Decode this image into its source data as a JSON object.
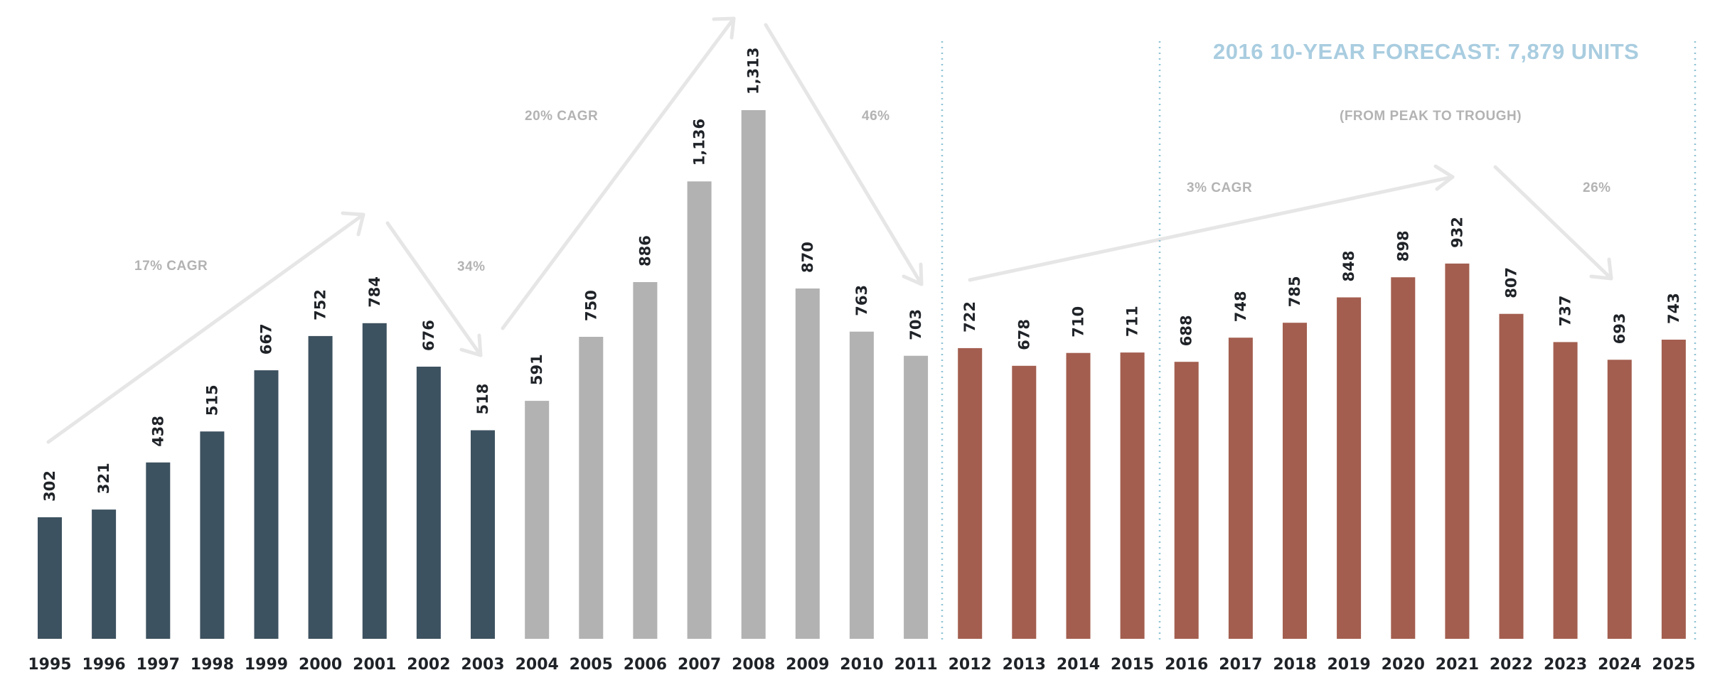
{
  "chart_data": {
    "type": "bar",
    "title": "2016 10-YEAR FORECAST: 7,879  UNITS",
    "xlabel": "",
    "ylabel": "",
    "ylim": [
      0,
      1313
    ],
    "grid": false,
    "categories": [
      "1995",
      "1996",
      "1997",
      "1998",
      "1999",
      "2000",
      "2001",
      "2002",
      "2003",
      "2004",
      "2005",
      "2006",
      "2007",
      "2008",
      "2009",
      "2010",
      "2011",
      "2012",
      "2013",
      "2014",
      "2015",
      "2016",
      "2017",
      "2018",
      "2019",
      "2020",
      "2021",
      "2022",
      "2023",
      "2024",
      "2025"
    ],
    "values": [
      302,
      321,
      438,
      515,
      667,
      752,
      784,
      676,
      518,
      591,
      750,
      886,
      1136,
      1313,
      870,
      763,
      703,
      722,
      678,
      710,
      711,
      688,
      748,
      785,
      848,
      898,
      932,
      807,
      737,
      693,
      743
    ],
    "value_labels": [
      "302",
      "321",
      "438",
      "515",
      "667",
      "752",
      "784",
      "676",
      "518",
      "591",
      "750",
      "886",
      "1,136",
      "1,313",
      "870",
      "763",
      "703",
      "722",
      "678",
      "710",
      "711",
      "688",
      "748",
      "785",
      "848",
      "898",
      "932",
      "807",
      "737",
      "693",
      "743"
    ],
    "bar_colors": [
      "#3d5260",
      "#3d5260",
      "#3d5260",
      "#3d5260",
      "#3d5260",
      "#3d5260",
      "#3d5260",
      "#3d5260",
      "#3d5260",
      "#b2b2b2",
      "#b2b2b2",
      "#b2b2b2",
      "#b2b2b2",
      "#b2b2b2",
      "#b2b2b2",
      "#b2b2b2",
      "#b2b2b2",
      "#a35e4f",
      "#a35e4f",
      "#a35e4f",
      "#a35e4f",
      "#a35e4f",
      "#a35e4f",
      "#a35e4f",
      "#a35e4f",
      "#a35e4f",
      "#a35e4f",
      "#a35e4f",
      "#a35e4f",
      "#a35e4f",
      "#a35e4f"
    ],
    "annotations": [
      "17% CAGR",
      "34%",
      "20% CAGR",
      "46%",
      "(FROM PEAK TO TROUGH)",
      "3% CAGR",
      "26%"
    ]
  },
  "colors": {
    "title": "#a9cde0",
    "annotation": "#b3b3b3",
    "arrow": "#e6e6e6",
    "divider": "#8fc3d6",
    "axis_text": "#1f2328"
  }
}
